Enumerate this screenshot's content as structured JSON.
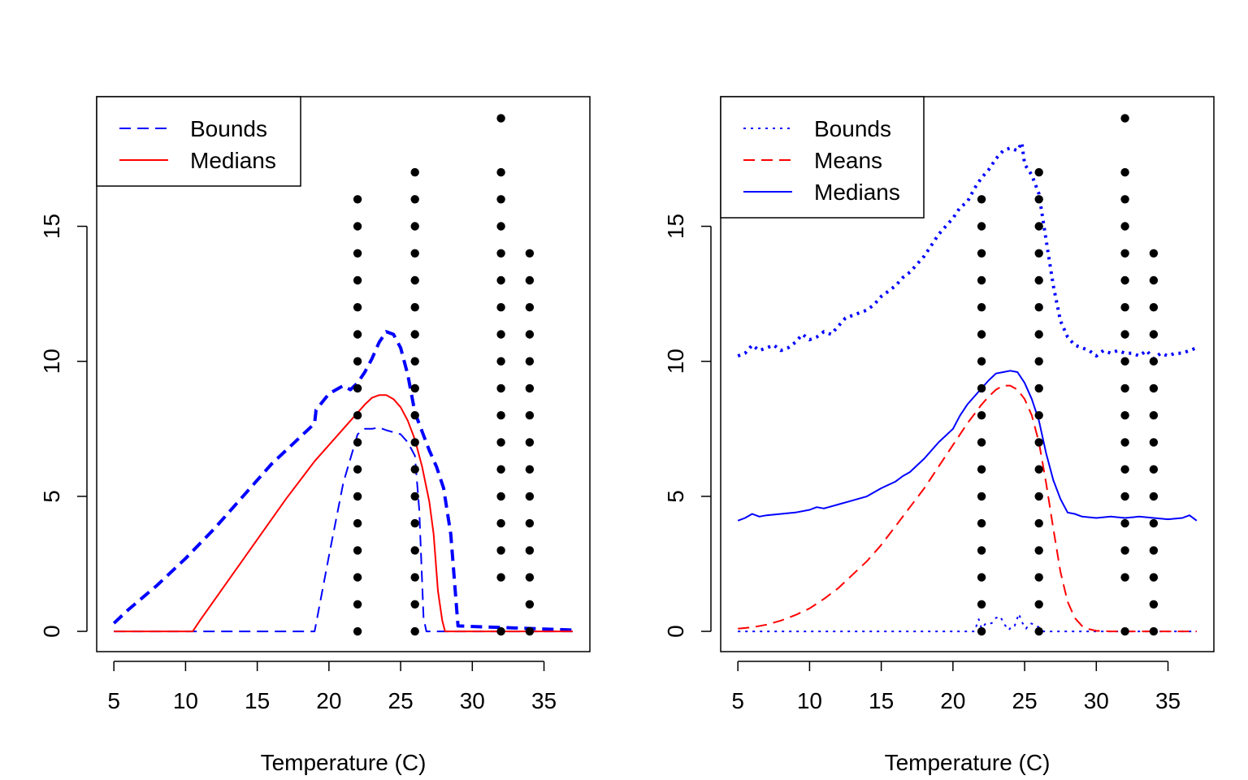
{
  "chart_data": [
    {
      "type": "scatter",
      "title": "",
      "xlabel": "Temperature (C)",
      "ylabel": "",
      "xlim": [
        3.8,
        38.2
      ],
      "ylim": [
        -0.75,
        19.8
      ],
      "xticks": [
        5,
        10,
        15,
        20,
        25,
        30,
        35
      ],
      "yticks": [
        0,
        5,
        10,
        15
      ],
      "legend": {
        "position": "top-left",
        "entries": [
          {
            "label": "Bounds",
            "color": "#0000ff",
            "dash": "dashed"
          },
          {
            "label": "Medians",
            "color": "#ff0000",
            "dash": "solid"
          }
        ]
      },
      "points": [
        {
          "x": 22,
          "y": [
            0,
            1,
            2,
            3,
            4,
            5,
            6,
            7,
            8,
            9,
            10,
            11,
            12,
            13,
            14,
            15,
            16
          ]
        },
        {
          "x": 26,
          "y": [
            0,
            1,
            2,
            3,
            4,
            5,
            6,
            7,
            8,
            9,
            10,
            11,
            12,
            13,
            14,
            15,
            16,
            17
          ]
        },
        {
          "x": 32,
          "y": [
            0,
            2,
            3,
            4,
            5,
            6,
            7,
            8,
            9,
            10,
            11,
            12,
            13,
            14,
            15,
            16,
            17,
            19
          ]
        },
        {
          "x": 34,
          "y": [
            0,
            1,
            2,
            3,
            4,
            5,
            6,
            7,
            8,
            9,
            10,
            11,
            12,
            13,
            14
          ]
        }
      ],
      "series": [
        {
          "name": "Bounds",
          "color": "#0000ff",
          "dash": "dashed",
          "width": 4,
          "x": [
            5,
            6,
            8,
            10,
            12,
            14,
            16,
            18,
            19,
            19.1,
            20,
            21,
            21.5,
            22,
            22.5,
            23,
            23.5,
            24,
            24.5,
            25,
            25.5,
            26,
            26.5,
            27,
            27.5,
            28,
            28.5,
            29,
            37
          ],
          "y": [
            0.3,
            0.8,
            1.7,
            2.7,
            3.8,
            5.0,
            6.2,
            7.2,
            7.7,
            8.2,
            8.8,
            9.1,
            8.95,
            9.2,
            9.6,
            10.1,
            10.7,
            11.1,
            11.0,
            10.5,
            9.5,
            8.1,
            7.4,
            6.7,
            6.1,
            5.3,
            3.6,
            0.2,
            0.05
          ]
        },
        {
          "name": "Bounds",
          "color": "#0000ff",
          "dash": "dashed",
          "width": 2,
          "x": [
            5,
            19,
            20,
            21,
            22,
            22.5,
            23,
            23.5,
            24,
            25,
            25.5,
            26,
            26.3,
            26.6,
            26.8,
            37
          ],
          "y": [
            0,
            0,
            2.8,
            5.5,
            7.3,
            7.5,
            7.5,
            7.55,
            7.45,
            7.3,
            7.0,
            6.5,
            4.5,
            0.5,
            0,
            0
          ]
        },
        {
          "name": "Medians",
          "color": "#ff0000",
          "dash": "solid",
          "width": 2,
          "x": [
            5,
            10.5,
            11,
            13,
            15,
            17,
            19,
            20,
            21,
            22,
            22.5,
            23,
            23.5,
            24,
            24.5,
            25,
            25.5,
            26,
            26.5,
            27,
            27.3,
            27.6,
            27.9,
            28.1,
            37
          ],
          "y": [
            0,
            0,
            0.4,
            1.9,
            3.4,
            4.9,
            6.3,
            6.9,
            7.5,
            8.1,
            8.4,
            8.65,
            8.75,
            8.75,
            8.6,
            8.3,
            7.8,
            7.1,
            6.1,
            4.8,
            3.6,
            1.5,
            0.4,
            0,
            0
          ]
        }
      ]
    },
    {
      "type": "scatter",
      "title": "",
      "xlabel": "Temperature (C)",
      "ylabel": "",
      "xlim": [
        3.8,
        38.2
      ],
      "ylim": [
        -0.75,
        19.8
      ],
      "xticks": [
        5,
        10,
        15,
        20,
        25,
        30,
        35
      ],
      "yticks": [
        0,
        5,
        10,
        15
      ],
      "legend": {
        "position": "top-left",
        "entries": [
          {
            "label": "Bounds",
            "color": "#0000ff",
            "dash": "dotted"
          },
          {
            "label": "Means",
            "color": "#ff0000",
            "dash": "dashed"
          },
          {
            "label": "Medians",
            "color": "#0000ff",
            "dash": "solid"
          }
        ]
      },
      "points": [
        {
          "x": 22,
          "y": [
            0,
            1,
            2,
            3,
            4,
            5,
            6,
            7,
            8,
            9,
            10,
            11,
            12,
            13,
            14,
            15,
            16
          ]
        },
        {
          "x": 26,
          "y": [
            0,
            1,
            2,
            3,
            4,
            5,
            6,
            7,
            8,
            9,
            10,
            11,
            12,
            13,
            14,
            15,
            16,
            17
          ]
        },
        {
          "x": 32,
          "y": [
            0,
            2,
            3,
            4,
            5,
            6,
            7,
            8,
            9,
            10,
            11,
            12,
            13,
            14,
            15,
            16,
            17,
            19
          ]
        },
        {
          "x": 34,
          "y": [
            0,
            1,
            2,
            3,
            4,
            5,
            6,
            7,
            8,
            9,
            10,
            11,
            12,
            13,
            14
          ]
        }
      ],
      "series": [
        {
          "name": "Bounds",
          "color": "#0000ff",
          "dash": "dotted",
          "width": 4,
          "x": [
            5,
            5.5,
            6,
            6.5,
            7,
            7.5,
            8,
            8.5,
            9,
            9.5,
            10,
            10.5,
            11,
            11.5,
            12,
            12.5,
            13,
            13.5,
            14,
            14.5,
            15,
            15.5,
            16,
            16.5,
            17,
            17.5,
            18,
            18.5,
            19,
            19.5,
            20,
            20.5,
            21,
            21.5,
            22,
            22.5,
            23,
            23.5,
            24,
            24.5,
            24.8,
            25,
            25.5,
            26,
            26.5,
            27,
            27.5,
            28,
            28.5,
            29,
            29.5,
            30,
            30.5,
            31,
            31.5,
            32,
            32.5,
            33,
            33.5,
            34,
            34.5,
            35,
            35.5,
            36,
            36.5,
            37
          ],
          "y": [
            10.2,
            10.3,
            10.6,
            10.4,
            10.5,
            10.6,
            10.4,
            10.5,
            10.7,
            11.0,
            10.8,
            10.9,
            11.1,
            11.0,
            11.3,
            11.6,
            11.7,
            11.8,
            11.9,
            12.1,
            12.4,
            12.6,
            12.8,
            13.1,
            13.3,
            13.6,
            13.9,
            14.3,
            14.7,
            15.0,
            15.3,
            15.7,
            15.9,
            16.4,
            16.8,
            17.1,
            17.5,
            17.8,
            17.9,
            17.8,
            18.1,
            17.3,
            16.9,
            16.2,
            14.5,
            12.8,
            11.5,
            10.9,
            10.6,
            10.5,
            10.4,
            10.2,
            10.4,
            10.3,
            10.4,
            10.3,
            10.3,
            10.2,
            10.4,
            10.1,
            10.3,
            10.2,
            10.3,
            10.3,
            10.4,
            10.5
          ]
        },
        {
          "name": "Bounds",
          "color": "#0000ff",
          "dash": "dotted",
          "width": 2,
          "x": [
            5,
            21.5,
            21.8,
            22,
            22.3,
            22.7,
            23,
            23.3,
            23.6,
            23.9,
            24.1,
            24.3,
            24.6,
            24.8,
            25.1,
            25.4,
            25.7,
            26,
            26.3,
            37
          ],
          "y": [
            0,
            0,
            0.45,
            0.1,
            0.3,
            0.3,
            0.5,
            0.55,
            0.25,
            0.05,
            0.2,
            0.2,
            0.65,
            0.35,
            0.1,
            0.3,
            0.25,
            0.15,
            0,
            0
          ]
        },
        {
          "name": "Means",
          "color": "#ff0000",
          "dash": "dashed",
          "width": 2,
          "x": [
            5,
            6,
            7,
            8,
            9,
            10,
            11,
            12,
            13,
            14,
            15,
            16,
            17,
            18,
            19,
            20,
            21,
            22,
            22.5,
            23,
            23.5,
            24,
            24.5,
            25,
            25.5,
            26,
            26.5,
            27,
            27.5,
            28,
            28.5,
            29,
            29.5,
            30,
            31,
            37
          ],
          "y": [
            0.1,
            0.15,
            0.25,
            0.4,
            0.6,
            0.85,
            1.2,
            1.6,
            2.1,
            2.6,
            3.2,
            3.9,
            4.6,
            5.3,
            6.1,
            6.9,
            7.7,
            8.4,
            8.7,
            8.95,
            9.1,
            9.1,
            8.95,
            8.6,
            8.0,
            7.0,
            5.5,
            3.8,
            2.2,
            1.1,
            0.5,
            0.2,
            0.08,
            0.02,
            0,
            0
          ]
        },
        {
          "name": "Medians",
          "color": "#0000ff",
          "dash": "solid",
          "width": 2,
          "x": [
            5,
            5.5,
            6,
            6.5,
            7,
            8,
            9,
            10,
            10.5,
            11,
            12,
            13,
            14,
            15,
            16,
            16.5,
            17,
            18,
            19,
            20,
            20.5,
            21,
            21.5,
            22,
            22.5,
            23,
            23.5,
            24,
            24.5,
            25,
            25.5,
            26,
            26.5,
            27,
            27.5,
            28,
            28.5,
            29,
            30,
            31,
            32,
            33,
            34,
            35,
            36,
            36.5,
            37
          ],
          "y": [
            4.1,
            4.2,
            4.35,
            4.25,
            4.3,
            4.35,
            4.4,
            4.5,
            4.6,
            4.55,
            4.7,
            4.85,
            5.0,
            5.3,
            5.55,
            5.75,
            5.9,
            6.4,
            7.0,
            7.5,
            8.0,
            8.4,
            8.7,
            9.0,
            9.3,
            9.55,
            9.6,
            9.65,
            9.6,
            9.2,
            8.6,
            7.8,
            6.6,
            5.6,
            4.9,
            4.4,
            4.35,
            4.25,
            4.2,
            4.25,
            4.2,
            4.25,
            4.2,
            4.15,
            4.2,
            4.3,
            4.1
          ]
        }
      ]
    }
  ]
}
